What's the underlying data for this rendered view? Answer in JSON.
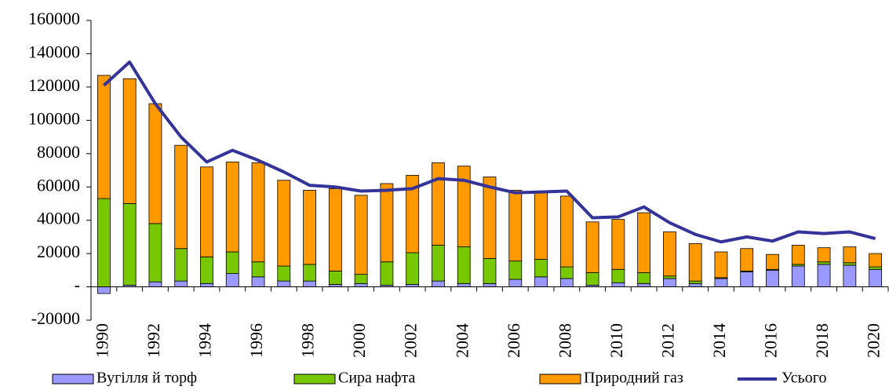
{
  "chart_data": {
    "type": "bar",
    "stacked": true,
    "categories": [
      "1990",
      null,
      "1992",
      null,
      "1994",
      null,
      "1996",
      null,
      "1998",
      null,
      "2000",
      null,
      "2002",
      null,
      "2004",
      null,
      "2006",
      null,
      "2008",
      null,
      "2010",
      null,
      "2012",
      null,
      "2014",
      null,
      "2016",
      null,
      "2018",
      null,
      "2020"
    ],
    "series": [
      {
        "name": "Вугілля й торф",
        "color": "#9999ff",
        "values": [
          -4000,
          1000,
          3000,
          3500,
          2000,
          8000,
          6000,
          3500,
          3500,
          1500,
          2000,
          1000,
          1500,
          3500,
          2000,
          2000,
          4500,
          6000,
          5000,
          1000,
          2500,
          2000,
          5000,
          2000,
          5000,
          9000,
          10000,
          12500,
          13500,
          13000,
          10500
        ]
      },
      {
        "name": "Сира нафта",
        "color": "#77c800",
        "values": [
          53000,
          49000,
          35000,
          19500,
          16000,
          13000,
          9000,
          9000,
          10000,
          8000,
          5500,
          14000,
          19000,
          21500,
          22000,
          15000,
          11000,
          10500,
          7000,
          7500,
          8000,
          6500,
          1500,
          1500,
          500,
          500,
          500,
          1000,
          1500,
          1500,
          1500
        ]
      },
      {
        "name": "Природний газ",
        "color": "#ff9900",
        "values": [
          74000,
          75000,
          72000,
          62000,
          54000,
          54000,
          59500,
          51500,
          44500,
          49500,
          47500,
          47000,
          46500,
          49500,
          48500,
          49000,
          42500,
          40500,
          42500,
          30500,
          30000,
          36000,
          26500,
          22500,
          15500,
          13500,
          9000,
          11500,
          8500,
          9500,
          8000
        ]
      },
      {
        "name": "Усього",
        "color": "#333399",
        "type": "line",
        "values": [
          121000,
          135000,
          110000,
          90000,
          75000,
          82000,
          76000,
          69000,
          61000,
          60000,
          57500,
          58000,
          59000,
          65000,
          64000,
          60000,
          56500,
          57000,
          57500,
          41500,
          42000,
          48000,
          38500,
          31500,
          27000,
          30000,
          27500,
          33000,
          32000,
          33000,
          29000
        ]
      }
    ],
    "ylim": [
      -20000,
      160000
    ],
    "yticks": [
      -20000,
      {
        "value": 0,
        "label": "-"
      },
      20000,
      40000,
      60000,
      80000,
      100000,
      120000,
      140000,
      160000
    ],
    "grid": false,
    "legend": "bottom"
  }
}
